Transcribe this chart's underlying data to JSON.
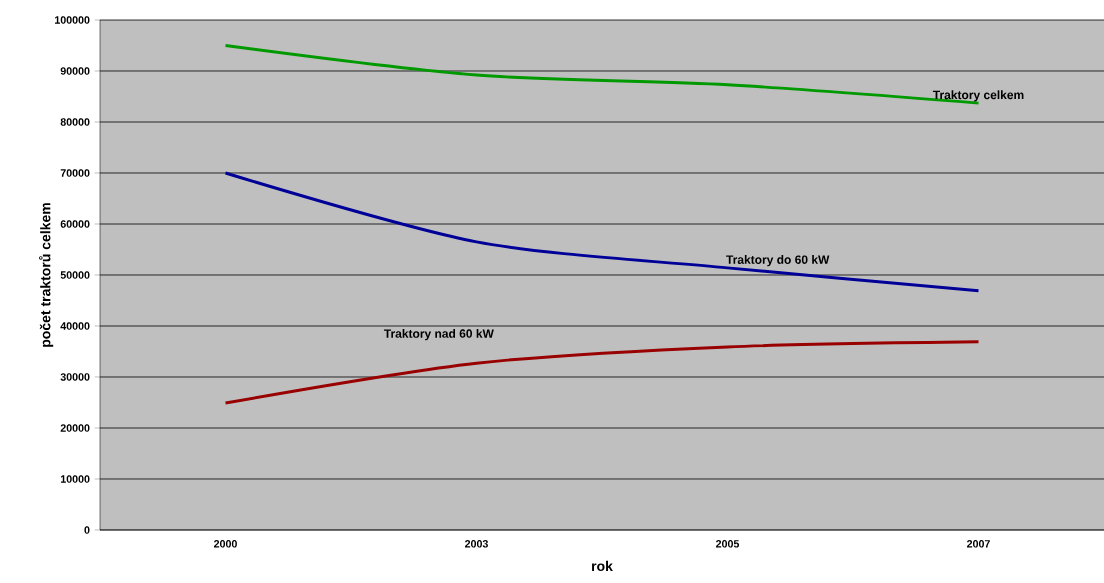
{
  "chart_data": {
    "type": "line",
    "xlabel": "rok",
    "ylabel": "počet traktorů celkem",
    "categories": [
      "2000",
      "2003",
      "2005",
      "2007"
    ],
    "series": [
      {
        "name": "Traktory celkem",
        "color": "#009900",
        "values": [
          95000,
          89200,
          87300,
          83700
        ]
      },
      {
        "name": "Traktory do 60 kW",
        "color": "#000099",
        "values": [
          70000,
          56500,
          51400,
          46900
        ]
      },
      {
        "name": "Traktory nad 60 kW",
        "color": "#990000",
        "values": [
          24900,
          32700,
          35900,
          36900
        ]
      }
    ],
    "ylim": [
      0,
      100000
    ],
    "yticks": [
      0,
      10000,
      20000,
      30000,
      40000,
      50000,
      60000,
      70000,
      80000,
      90000,
      100000
    ],
    "grid": "y"
  }
}
